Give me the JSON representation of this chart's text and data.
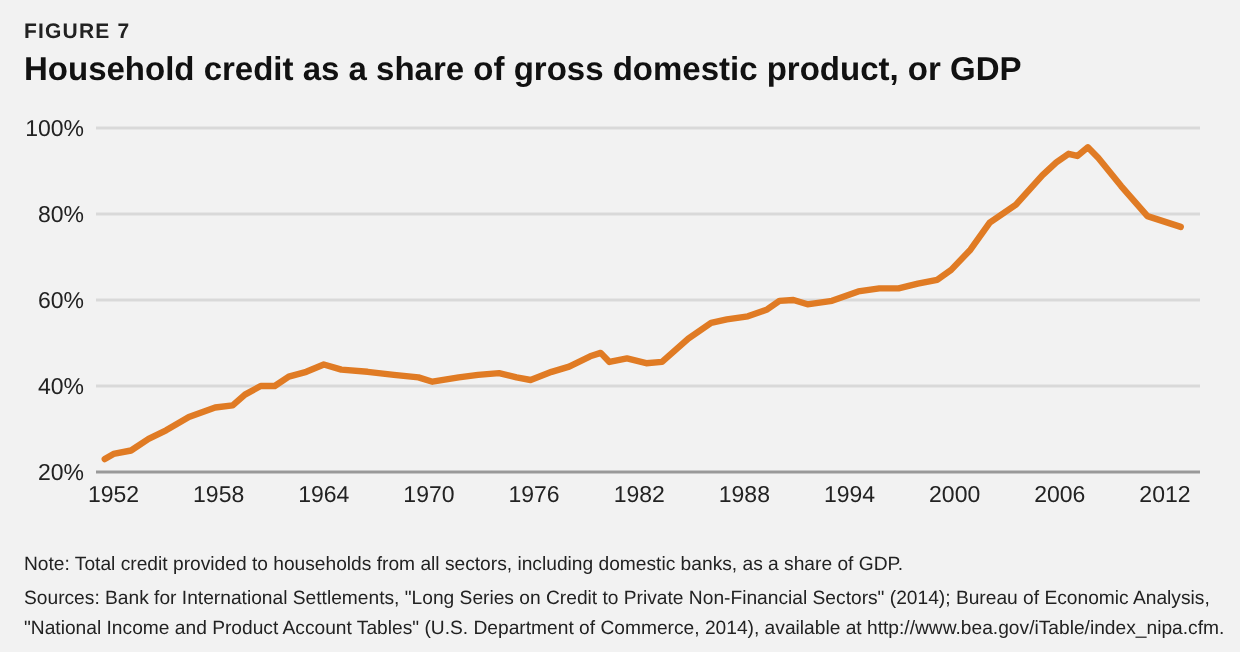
{
  "chart_data": {
    "type": "line",
    "subtitle": "FIGURE 7",
    "title": "Household credit as a share of gross domestic product, or GDP",
    "x": [
      1951.5,
      1952,
      1953,
      1954,
      1955,
      1956.3,
      1957.8,
      1958.8,
      1959.5,
      1960.4,
      1961.2,
      1962,
      1963,
      1964,
      1965,
      1966.5,
      1968,
      1969.4,
      1970.2,
      1971.7,
      1972.8,
      1974,
      1975,
      1975.8,
      1977,
      1978,
      1979.2,
      1979.8,
      1980.3,
      1981.3,
      1982.4,
      1983.3,
      1984.8,
      1986.1,
      1987,
      1988.2,
      1989.3,
      1990,
      1990.8,
      1991.6,
      1993,
      1994.5,
      1995.7,
      1996.8,
      1997.9,
      1999,
      1999.8,
      2000.9,
      2002,
      2003.5,
      2005,
      2005.8,
      2006.5,
      2007,
      2007.6,
      2008.2,
      2009.5,
      2011,
      2012.9
    ],
    "series": [
      {
        "color": "#e07b24",
        "values": [
          23,
          24.2,
          25,
          27.7,
          29.7,
          32.8,
          35,
          35.5,
          38,
          40,
          40,
          42.2,
          43.3,
          45,
          43.8,
          43.3,
          42.6,
          42,
          41,
          42,
          42.6,
          43,
          42,
          41.4,
          43.3,
          44.5,
          46.9,
          47.7,
          45.6,
          46.4,
          45.3,
          45.6,
          51,
          54.7,
          55.5,
          56.2,
          57.8,
          59.8,
          60,
          59,
          59.8,
          62,
          62.7,
          62.7,
          63.8,
          64.7,
          67,
          71.7,
          78,
          82.2,
          89,
          92,
          94,
          93.5,
          95.5,
          93,
          86.5,
          79.5,
          77
        ]
      }
    ],
    "xlim": [
      1951,
      2014
    ],
    "xticks": [
      1952,
      1958,
      1964,
      1970,
      1976,
      1982,
      1988,
      1994,
      2000,
      2006,
      2012
    ],
    "ylim": [
      20,
      100
    ],
    "yticks": [
      {
        "value": 20,
        "label": "20%"
      },
      {
        "value": 40,
        "label": "40%"
      },
      {
        "value": 60,
        "label": "60%"
      },
      {
        "value": 80,
        "label": "80%"
      },
      {
        "value": 100,
        "label": "100%"
      }
    ],
    "grid": "y",
    "line_style": "solid",
    "annotations": [
      "Note: Total credit provided to households from all sectors, including domestic banks, as a share of GDP.",
      "Sources: Bank for International Settlements, \"Long Series on Credit to Private Non-Financial Sectors\" (2014); Bureau of Economic Analysis,",
      "\"National Income and Product Account Tables\" (U.S. Department of Commerce, 2014), available at http://www.bea.gov/iTable/index_nipa.cfm."
    ]
  }
}
